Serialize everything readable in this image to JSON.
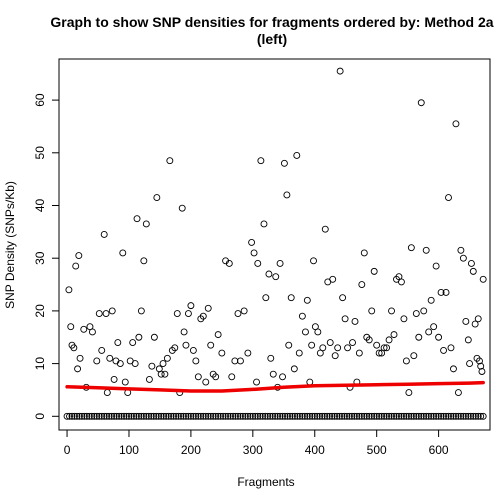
{
  "chart_data": {
    "type": "scatter",
    "title_line1": "Graph to show SNP densities for fragments ordered by: Method 2a",
    "title_line2": "(left)",
    "xlabel": "Fragments",
    "ylabel": "SNP Density (SNPs/Kb)",
    "xlim": [
      -13,
      683
    ],
    "ylim": [
      -2.6,
      67.8
    ],
    "x_ticks": [
      0,
      100,
      200,
      300,
      400,
      500,
      600
    ],
    "y_ticks": [
      0,
      10,
      20,
      30,
      40,
      50,
      60
    ],
    "point_style": "open-circle",
    "point_color": "#000000",
    "trend_color": "#ee0000",
    "zero_points": {
      "x_start": 0,
      "x_end": 672,
      "step": 4,
      "y": 0
    },
    "points": [
      [
        3,
        24
      ],
      [
        6,
        17
      ],
      [
        8,
        13.5
      ],
      [
        11,
        13
      ],
      [
        14,
        28.5
      ],
      [
        17,
        9
      ],
      [
        19,
        30.5
      ],
      [
        21,
        11
      ],
      [
        27,
        16.5
      ],
      [
        31,
        5.5
      ],
      [
        37,
        17
      ],
      [
        41,
        16
      ],
      [
        48,
        10.5
      ],
      [
        52,
        19.5
      ],
      [
        56,
        12.5
      ],
      [
        60,
        34.5
      ],
      [
        63,
        19.5
      ],
      [
        65,
        4.5
      ],
      [
        69,
        11
      ],
      [
        73,
        20
      ],
      [
        76,
        7
      ],
      [
        79,
        10.5
      ],
      [
        82,
        14
      ],
      [
        86,
        10
      ],
      [
        90,
        31
      ],
      [
        94,
        6.5
      ],
      [
        98,
        4.5
      ],
      [
        102,
        10.5
      ],
      [
        106,
        14
      ],
      [
        110,
        10
      ],
      [
        113,
        37.5
      ],
      [
        116,
        15
      ],
      [
        120,
        20
      ],
      [
        124,
        29.5
      ],
      [
        128,
        36.5
      ],
      [
        133,
        7
      ],
      [
        137,
        9.5
      ],
      [
        141,
        15
      ],
      [
        145,
        41.5
      ],
      [
        149,
        9
      ],
      [
        152,
        8
      ],
      [
        155,
        10
      ],
      [
        158,
        8
      ],
      [
        162,
        11
      ],
      [
        166,
        48.5
      ],
      [
        170,
        12.5
      ],
      [
        174,
        13
      ],
      [
        178,
        19.5
      ],
      [
        182,
        4.5
      ],
      [
        186,
        39.5
      ],
      [
        189,
        16
      ],
      [
        192,
        13.5
      ],
      [
        196,
        19.5
      ],
      [
        200,
        21
      ],
      [
        204,
        12.5
      ],
      [
        208,
        10.5
      ],
      [
        212,
        7.5
      ],
      [
        216,
        18.5
      ],
      [
        220,
        19
      ],
      [
        224,
        6.5
      ],
      [
        228,
        20.5
      ],
      [
        232,
        13.5
      ],
      [
        236,
        8
      ],
      [
        240,
        7.5
      ],
      [
        244,
        15.5
      ],
      [
        250,
        12
      ],
      [
        256,
        29.5
      ],
      [
        262,
        29
      ],
      [
        266,
        7.5
      ],
      [
        271,
        10.5
      ],
      [
        276,
        19.5
      ],
      [
        280,
        10.5
      ],
      [
        286,
        20
      ],
      [
        292,
        12
      ],
      [
        298,
        33
      ],
      [
        302,
        31
      ],
      [
        306,
        6.5
      ],
      [
        308,
        29
      ],
      [
        313,
        48.5
      ],
      [
        318,
        36.5
      ],
      [
        321,
        22.5
      ],
      [
        326,
        27
      ],
      [
        329,
        11
      ],
      [
        333,
        8
      ],
      [
        337,
        26.5
      ],
      [
        340,
        5.5
      ],
      [
        344,
        29
      ],
      [
        348,
        7.5
      ],
      [
        351,
        48
      ],
      [
        355,
        42
      ],
      [
        358,
        13.5
      ],
      [
        362,
        22.5
      ],
      [
        367,
        9
      ],
      [
        371,
        49.5
      ],
      [
        375,
        12
      ],
      [
        380,
        19
      ],
      [
        385,
        16
      ],
      [
        388,
        22
      ],
      [
        392,
        6.5
      ],
      [
        395,
        13.5
      ],
      [
        398,
        29.5
      ],
      [
        401,
        17
      ],
      [
        405,
        16
      ],
      [
        409,
        12
      ],
      [
        413,
        13
      ],
      [
        417,
        35.5
      ],
      [
        421,
        25.5
      ],
      [
        425,
        14
      ],
      [
        429,
        26
      ],
      [
        433,
        11.5
      ],
      [
        437,
        13
      ],
      [
        441,
        65.5
      ],
      [
        445,
        22.5
      ],
      [
        449,
        18.5
      ],
      [
        453,
        13
      ],
      [
        457,
        5.5
      ],
      [
        461,
        14
      ],
      [
        465,
        18
      ],
      [
        468,
        6.5
      ],
      [
        472,
        12
      ],
      [
        476,
        25
      ],
      [
        480,
        31
      ],
      [
        484,
        15
      ],
      [
        488,
        14.5
      ],
      [
        492,
        20
      ],
      [
        496,
        27.5
      ],
      [
        500,
        13.5
      ],
      [
        504,
        12
      ],
      [
        508,
        12
      ],
      [
        512,
        13
      ],
      [
        516,
        13
      ],
      [
        520,
        14.5
      ],
      [
        524,
        20
      ],
      [
        528,
        15.5
      ],
      [
        532,
        26
      ],
      [
        536,
        26.5
      ],
      [
        540,
        25.5
      ],
      [
        544,
        18.5
      ],
      [
        548,
        10.5
      ],
      [
        552,
        4.5
      ],
      [
        556,
        32
      ],
      [
        560,
        11.5
      ],
      [
        564,
        19.5
      ],
      [
        568,
        15
      ],
      [
        572,
        59.5
      ],
      [
        576,
        20
      ],
      [
        580,
        31.5
      ],
      [
        584,
        16
      ],
      [
        588,
        22
      ],
      [
        592,
        17
      ],
      [
        596,
        28.5
      ],
      [
        600,
        15
      ],
      [
        604,
        23.5
      ],
      [
        608,
        12.5
      ],
      [
        612,
        23.5
      ],
      [
        616,
        41.5
      ],
      [
        620,
        13
      ],
      [
        624,
        9
      ],
      [
        628,
        55.5
      ],
      [
        632,
        4.5
      ],
      [
        636,
        31.5
      ],
      [
        640,
        30
      ],
      [
        644,
        18
      ],
      [
        648,
        14.5
      ],
      [
        650,
        10
      ],
      [
        653,
        29
      ],
      [
        656,
        27.5
      ],
      [
        659,
        17.5
      ],
      [
        662,
        11
      ],
      [
        664,
        18.5
      ],
      [
        666,
        10.5
      ],
      [
        668,
        9.5
      ],
      [
        670,
        8.5
      ],
      [
        672,
        26
      ]
    ],
    "trend": [
      [
        0,
        5.6
      ],
      [
        50,
        5.4
      ],
      [
        100,
        5.2
      ],
      [
        150,
        5.0
      ],
      [
        200,
        4.8
      ],
      [
        250,
        4.8
      ],
      [
        300,
        5.1
      ],
      [
        350,
        5.5
      ],
      [
        400,
        5.8
      ],
      [
        450,
        5.9
      ],
      [
        500,
        6.0
      ],
      [
        550,
        6.1
      ],
      [
        600,
        6.2
      ],
      [
        650,
        6.3
      ],
      [
        672,
        6.4
      ]
    ]
  }
}
